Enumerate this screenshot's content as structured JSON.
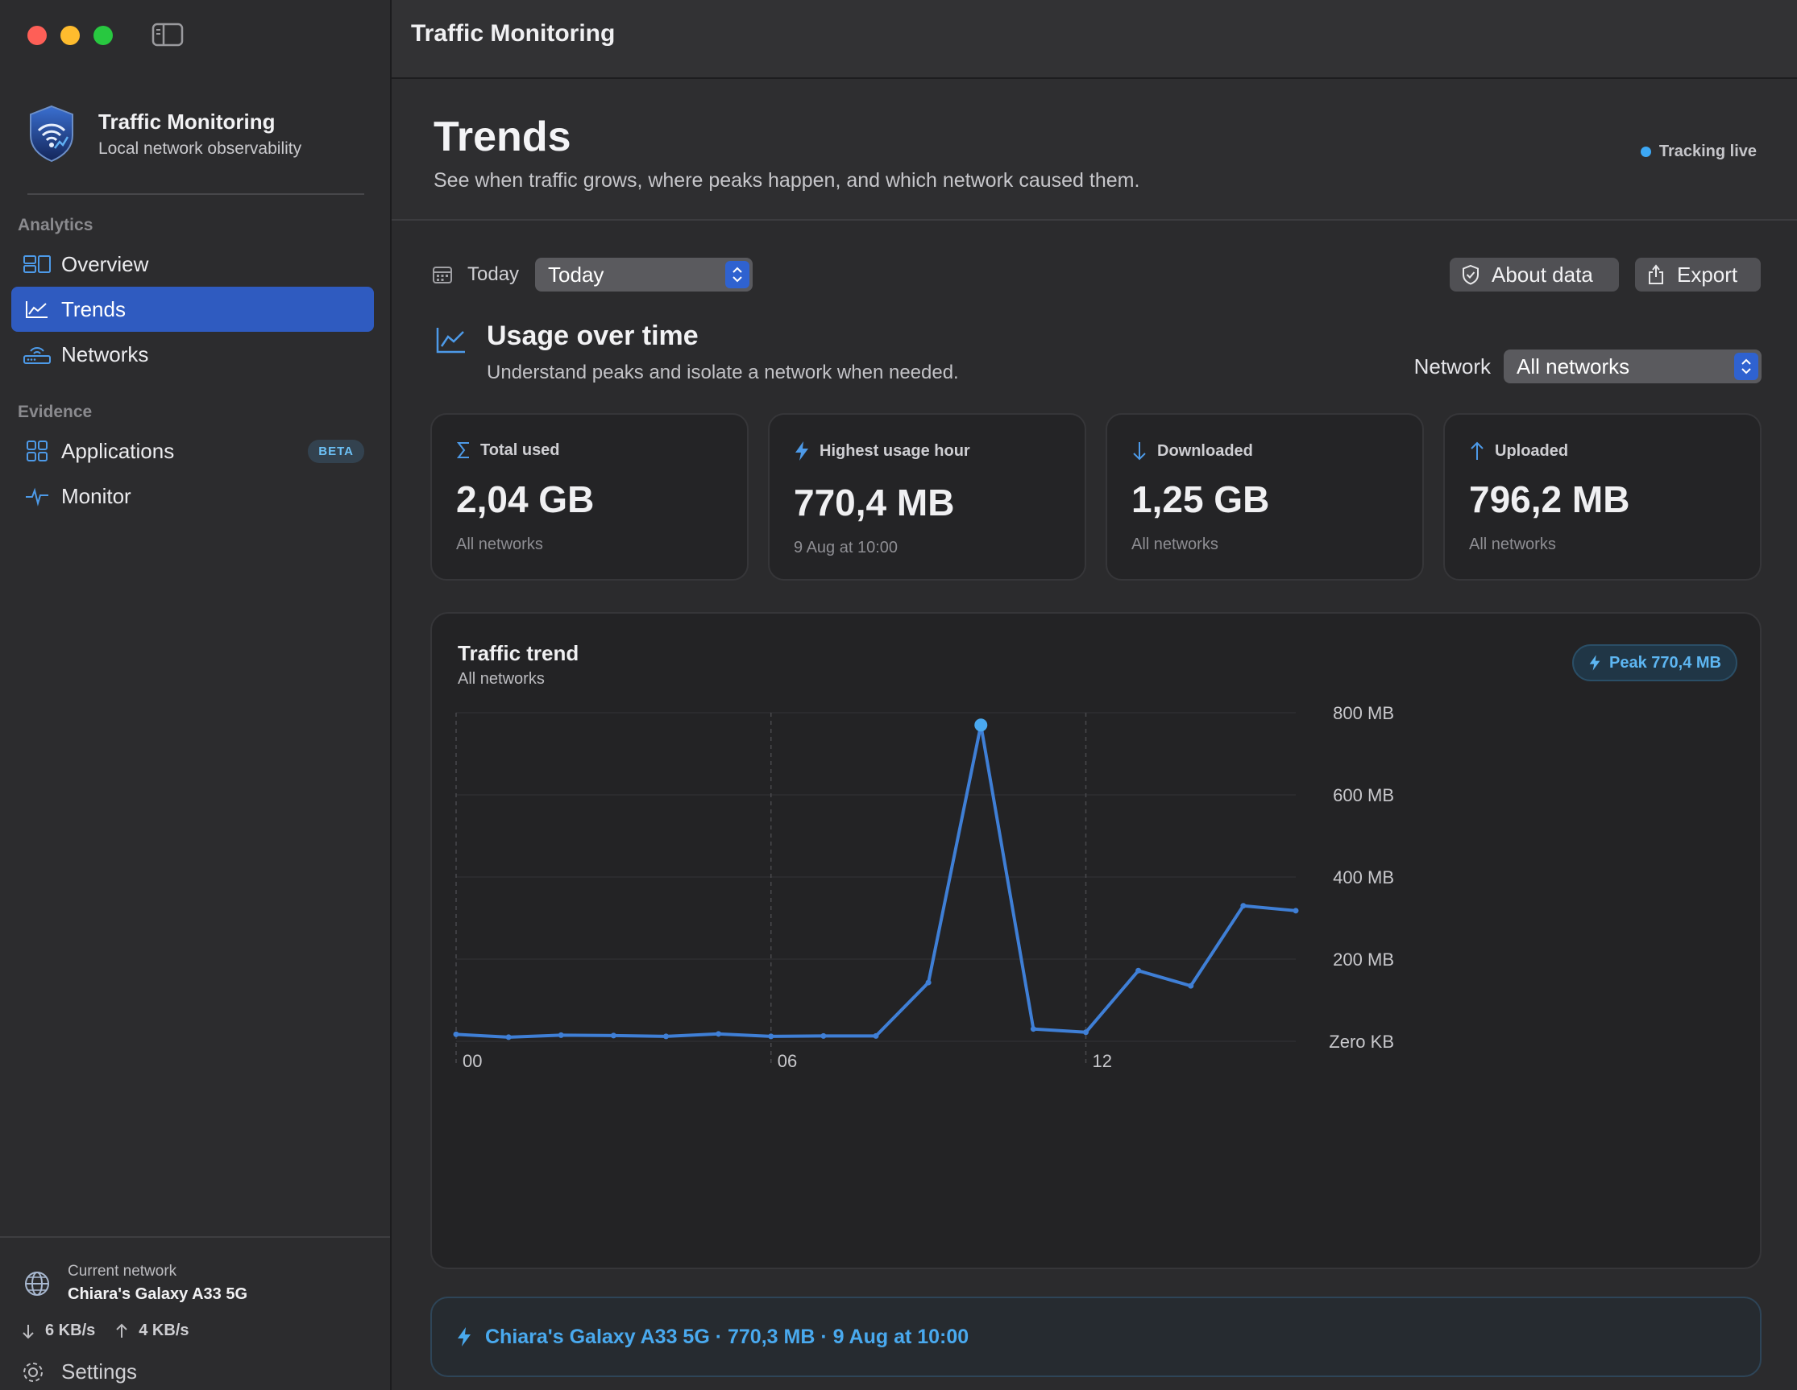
{
  "app": {
    "name": "Traffic Monitoring",
    "subtitle": "Local network observability",
    "window_title": "Traffic Monitoring"
  },
  "sidebar": {
    "sections": [
      {
        "title": "Analytics",
        "items": [
          {
            "label": "Overview",
            "icon": "overview-icon"
          },
          {
            "label": "Trends",
            "icon": "chart-line-icon",
            "active": true
          },
          {
            "label": "Networks",
            "icon": "router-icon"
          }
        ]
      },
      {
        "title": "Evidence",
        "items": [
          {
            "label": "Applications",
            "icon": "grid-icon",
            "badge": "BETA"
          },
          {
            "label": "Monitor",
            "icon": "pulse-icon"
          }
        ]
      }
    ],
    "current_network": {
      "label": "Current network",
      "name": "Chiara's Galaxy A33 5G",
      "down_speed": "6 KB/s",
      "up_speed": "4 KB/s"
    },
    "settings_label": "Settings"
  },
  "header": {
    "title": "Trends",
    "description": "See when traffic grows, where peaks happen, and which network caused them.",
    "live_status": "Tracking live"
  },
  "toolbar": {
    "date_label": "Today",
    "date_select_value": "Today",
    "about_label": "About data",
    "export_label": "Export"
  },
  "usage": {
    "title": "Usage over time",
    "subtitle": "Understand peaks and isolate a network when needed.",
    "network_label": "Network",
    "network_value": "All networks"
  },
  "cards": [
    {
      "title": "Total used",
      "value": "2,04 GB",
      "note": "All networks",
      "icon": "sigma-icon"
    },
    {
      "title": "Highest usage hour",
      "value": "770,4 MB",
      "note": "9 Aug at 10:00",
      "icon": "bolt-icon"
    },
    {
      "title": "Downloaded",
      "value": "1,25 GB",
      "note": "All networks",
      "icon": "arrow-down-icon"
    },
    {
      "title": "Uploaded",
      "value": "796,2 MB",
      "note": "All networks",
      "icon": "arrow-up-icon"
    }
  ],
  "chart": {
    "title": "Traffic trend",
    "subtitle": "All networks",
    "peak_badge": "Peak 770,4 MB",
    "line_color": "#3f7fd6",
    "peak_color": "#4aa9f0"
  },
  "chart_data": {
    "type": "line",
    "x": [
      0,
      1,
      2,
      3,
      4,
      5,
      6,
      7,
      8,
      9,
      10,
      11,
      12,
      13,
      14,
      15,
      16
    ],
    "x_tick_labels": [
      "00",
      "06",
      "12"
    ],
    "x_tick_positions": [
      0,
      6,
      12
    ],
    "y_tick_labels": [
      "800 MB",
      "600 MB",
      "400 MB",
      "200 MB",
      "Zero KB"
    ],
    "y_tick_values": [
      800,
      600,
      400,
      200,
      0
    ],
    "ylim": [
      0,
      800
    ],
    "xlim": [
      0,
      16
    ],
    "series": [
      {
        "values": [
          17,
          10,
          15,
          14,
          12,
          18,
          12,
          13,
          13,
          143,
          770,
          30,
          22,
          172,
          135,
          330,
          318
        ]
      }
    ],
    "peak_index": 10,
    "grid": true
  },
  "footer": {
    "text": "Chiara's Galaxy A33 5G · 770,3 MB · 9 Aug at 10:00"
  }
}
